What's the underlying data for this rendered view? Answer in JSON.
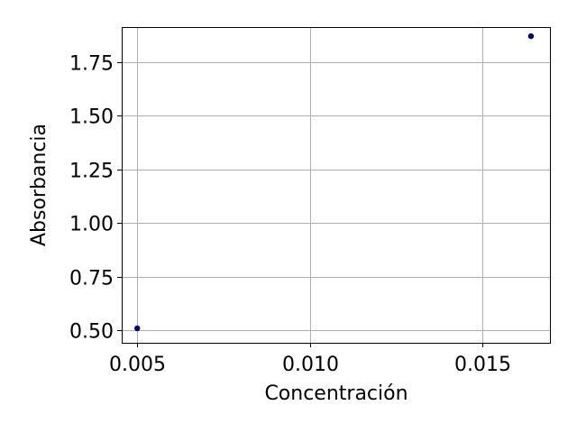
{
  "chart_data": {
    "type": "scatter",
    "xlabel": "Concentración",
    "ylabel": "Absorbancia",
    "xlim": [
      0.00455,
      0.01695
    ],
    "ylim": [
      0.4425,
      1.9125
    ],
    "xticks": [
      0.005,
      0.01,
      0.015
    ],
    "xtick_labels": [
      "0.005",
      "0.010",
      "0.015"
    ],
    "yticks": [
      0.5,
      0.75,
      1.0,
      1.25,
      1.5,
      1.75
    ],
    "ytick_labels": [
      "0.50",
      "0.75",
      "1.00",
      "1.25",
      "1.50",
      "1.75"
    ],
    "grid": true,
    "marker_color": "#00006e",
    "points": [
      {
        "x": 0.005,
        "y": 0.51
      },
      {
        "x": 0.0164,
        "y": 1.87
      }
    ]
  }
}
